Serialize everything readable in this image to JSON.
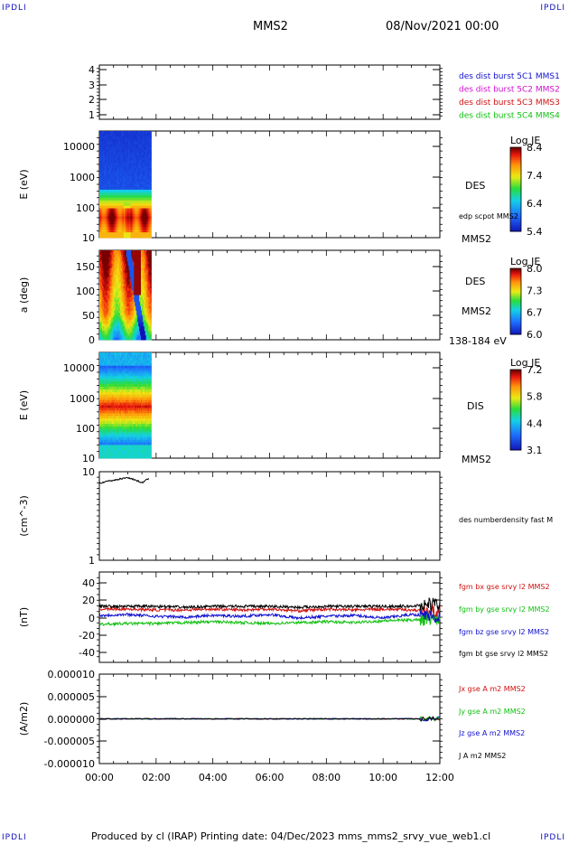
{
  "corners": {
    "tl": "IPDLI",
    "tr": "IPDLI",
    "bl": "IPDLI",
    "br": "IPDLI"
  },
  "header": {
    "spacecraft": "MMS2",
    "datetime": "08/Nov/2021 00:00"
  },
  "footer": {
    "text": "Produced by cl (IRAP)   Printing date: 04/Dec/2023   mms_mms2_srvy_vue_web1.cl"
  },
  "colors": {
    "blue": "#1010d0",
    "magenta": "#d010d0",
    "red": "#d01010",
    "green": "#10c010",
    "black": "#000000"
  },
  "chart_data": [
    {
      "type": "scatter",
      "id": "p1",
      "ylabel": "",
      "yticks": [
        "4",
        "3",
        "2",
        "1"
      ],
      "ylim": [
        0.5,
        4.5
      ],
      "legend": [
        {
          "text": "des dist burst 5C1 MMS1",
          "color": "#1010d0"
        },
        {
          "text": "des dist burst 5C2 MMS2",
          "color": "#d010d0"
        },
        {
          "text": "des dist burst 5C3 MMS3",
          "color": "#d01010"
        },
        {
          "text": "des dist burst 5C4 MMS4",
          "color": "#10c010"
        }
      ]
    },
    {
      "type": "heatmap",
      "id": "p2",
      "ylabel": "E (eV)",
      "scale": "log",
      "ylim": [
        10,
        30000
      ],
      "yticks": [
        "10000",
        "1000",
        "100",
        "10"
      ],
      "xrange": [
        "00:00",
        "01:50"
      ],
      "right_labels": [
        "DES",
        "edp scpot MMS2",
        "MMS2"
      ],
      "colorbar": {
        "title": "Log JE",
        "ticks": [
          "8.4",
          "7.4",
          "6.4",
          "5.4"
        ],
        "range": [
          5.4,
          8.4
        ]
      }
    },
    {
      "type": "heatmap",
      "id": "p3",
      "ylabel": "a (deg)",
      "ylim": [
        0,
        180
      ],
      "yticks": [
        "150",
        "100",
        "50",
        "0"
      ],
      "xrange": [
        "00:00",
        "01:50"
      ],
      "right_labels": [
        "DES",
        "MMS2",
        "138-184 eV"
      ],
      "colorbar": {
        "title": "Log JE",
        "ticks": [
          "8.0",
          "7.3",
          "6.7",
          "6.0"
        ],
        "range": [
          6.0,
          8.0
        ]
      }
    },
    {
      "type": "heatmap",
      "id": "p4",
      "ylabel": "E (eV)",
      "scale": "log",
      "ylim": [
        10,
        30000
      ],
      "yticks": [
        "10000",
        "1000",
        "100",
        "10"
      ],
      "xrange": [
        "00:00",
        "01:50"
      ],
      "right_labels": [
        "DIS",
        "MMS2"
      ],
      "colorbar": {
        "title": "Log JE",
        "ticks": [
          "7.2",
          "5.8",
          "4.4",
          "3.1"
        ],
        "range": [
          3.1,
          7.2
        ]
      }
    },
    {
      "type": "line",
      "id": "p5",
      "ylabel": "(cm^-3)",
      "scale": "log",
      "ylim": [
        1,
        10
      ],
      "yticks": [
        "10",
        "1"
      ],
      "series": [
        {
          "name": "des numberdensity fast M",
          "color": "#000000",
          "x": [
            0,
            0.25,
            0.5,
            0.75,
            1.0,
            1.25,
            1.5,
            1.75
          ],
          "y": [
            7.4,
            7.8,
            8.0,
            8.3,
            8.6,
            8.1,
            7.5,
            8.4
          ]
        }
      ]
    },
    {
      "type": "line",
      "id": "p6",
      "ylabel": "(nT)",
      "ylim": [
        -50,
        50
      ],
      "yticks": [
        "40",
        "20",
        "0",
        "-20",
        "-40"
      ],
      "series": [
        {
          "name": "fgm bx gse srvy l2 MMS2",
          "color": "#d01010",
          "x": [
            0,
            1,
            2,
            3,
            4,
            5,
            6,
            7,
            8,
            9,
            10,
            11,
            11.5,
            12
          ],
          "y": [
            9,
            9,
            8,
            8,
            9,
            8,
            9,
            7,
            9,
            8,
            9,
            8,
            7,
            6
          ]
        },
        {
          "name": "fgm by gse srvy l2 MMS2",
          "color": "#10c010",
          "x": [
            0,
            1,
            2,
            3,
            4,
            5,
            6,
            7,
            8,
            9,
            10,
            11,
            11.5,
            12
          ],
          "y": [
            -8,
            -7,
            -7,
            -6,
            -5,
            -6,
            -7,
            -6,
            -5,
            -6,
            -4,
            -3,
            -2,
            -1
          ]
        },
        {
          "name": "fgm bz gse srvy l2 MMS2",
          "color": "#1010d0",
          "x": [
            0,
            1,
            2,
            3,
            4,
            5,
            6,
            7,
            8,
            9,
            10,
            11,
            11.5,
            12
          ],
          "y": [
            2,
            3,
            1,
            0,
            2,
            1,
            3,
            -1,
            1,
            2,
            -1,
            3,
            2,
            0
          ]
        },
        {
          "name": "fgm bt gse srvy l2 MMS2",
          "color": "#000000",
          "x": [
            0,
            1,
            2,
            3,
            4,
            5,
            6,
            7,
            8,
            9,
            10,
            11,
            11.5,
            12
          ],
          "y": [
            12,
            12,
            12,
            11,
            12,
            12,
            12,
            11,
            12,
            12,
            12,
            12,
            14,
            15
          ]
        }
      ]
    },
    {
      "type": "line",
      "id": "p7",
      "ylabel": "(A/m2)",
      "ylim": [
        -1e-05,
        1e-05
      ],
      "yticks": [
        "0.000010",
        "0.000005",
        "0.000000",
        "-0.000005",
        "-0.000010"
      ],
      "series": [
        {
          "name": "Jx gse A m2 MMS2",
          "color": "#d01010",
          "x": [
            0,
            12
          ],
          "y": [
            0,
            0
          ]
        },
        {
          "name": "Jy gse A m2 MMS2",
          "color": "#10c010",
          "x": [
            0,
            12
          ],
          "y": [
            0,
            0
          ]
        },
        {
          "name": "Jz gse A m2 MMS2",
          "color": "#1010d0",
          "x": [
            0,
            12
          ],
          "y": [
            0,
            0
          ]
        },
        {
          "name": "J A m2 MMS2",
          "color": "#000000",
          "x": [
            0,
            12
          ],
          "y": [
            0,
            0
          ]
        }
      ]
    }
  ],
  "xaxis": {
    "ticks": [
      "00:00",
      "02:00",
      "04:00",
      "06:00",
      "08:00",
      "10:00",
      "12:00"
    ],
    "range_hours": [
      0,
      12
    ]
  }
}
